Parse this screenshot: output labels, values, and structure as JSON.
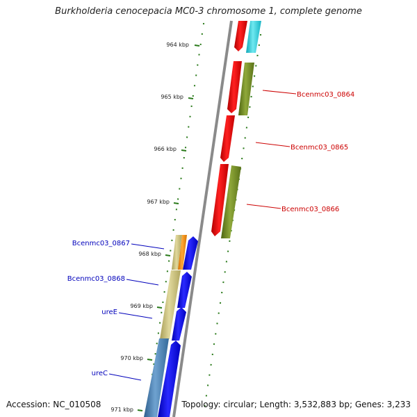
{
  "title": "Burkholderia cenocepacia MC0-3 chromosome 1, complete genome",
  "footer": {
    "accession": "Accession: NC_010508",
    "topology": "Topology: circular; Length: 3,532,883 bp; Genes: 3,233"
  },
  "ruler": {
    "ticks": [
      "964 kbp",
      "965 kbp",
      "966 kbp",
      "967 kbp",
      "968 kbp",
      "969 kbp",
      "970 kbp",
      "971 kbp"
    ]
  },
  "colors": {
    "backbone": "#8a8a8a",
    "tick": "#2a7a1a",
    "label_forward": "#cc0000",
    "label_reverse": "#0000bb",
    "red": "#ee0000",
    "cyan": "#22c8d8",
    "olive": "#6f8a1e",
    "blue": "#0000ee",
    "khaki": "#c8bf7a",
    "orange": "#ff8c00",
    "steel": "#4a7fb0"
  },
  "gene_labels": {
    "forward": [
      "Bcenmc03_0864",
      "Bcenmc03_0865",
      "Bcenmc03_0866"
    ],
    "reverse": [
      "Bcenmc03_0867",
      "Bcenmc03_0868",
      "ureE",
      "ureC"
    ]
  }
}
